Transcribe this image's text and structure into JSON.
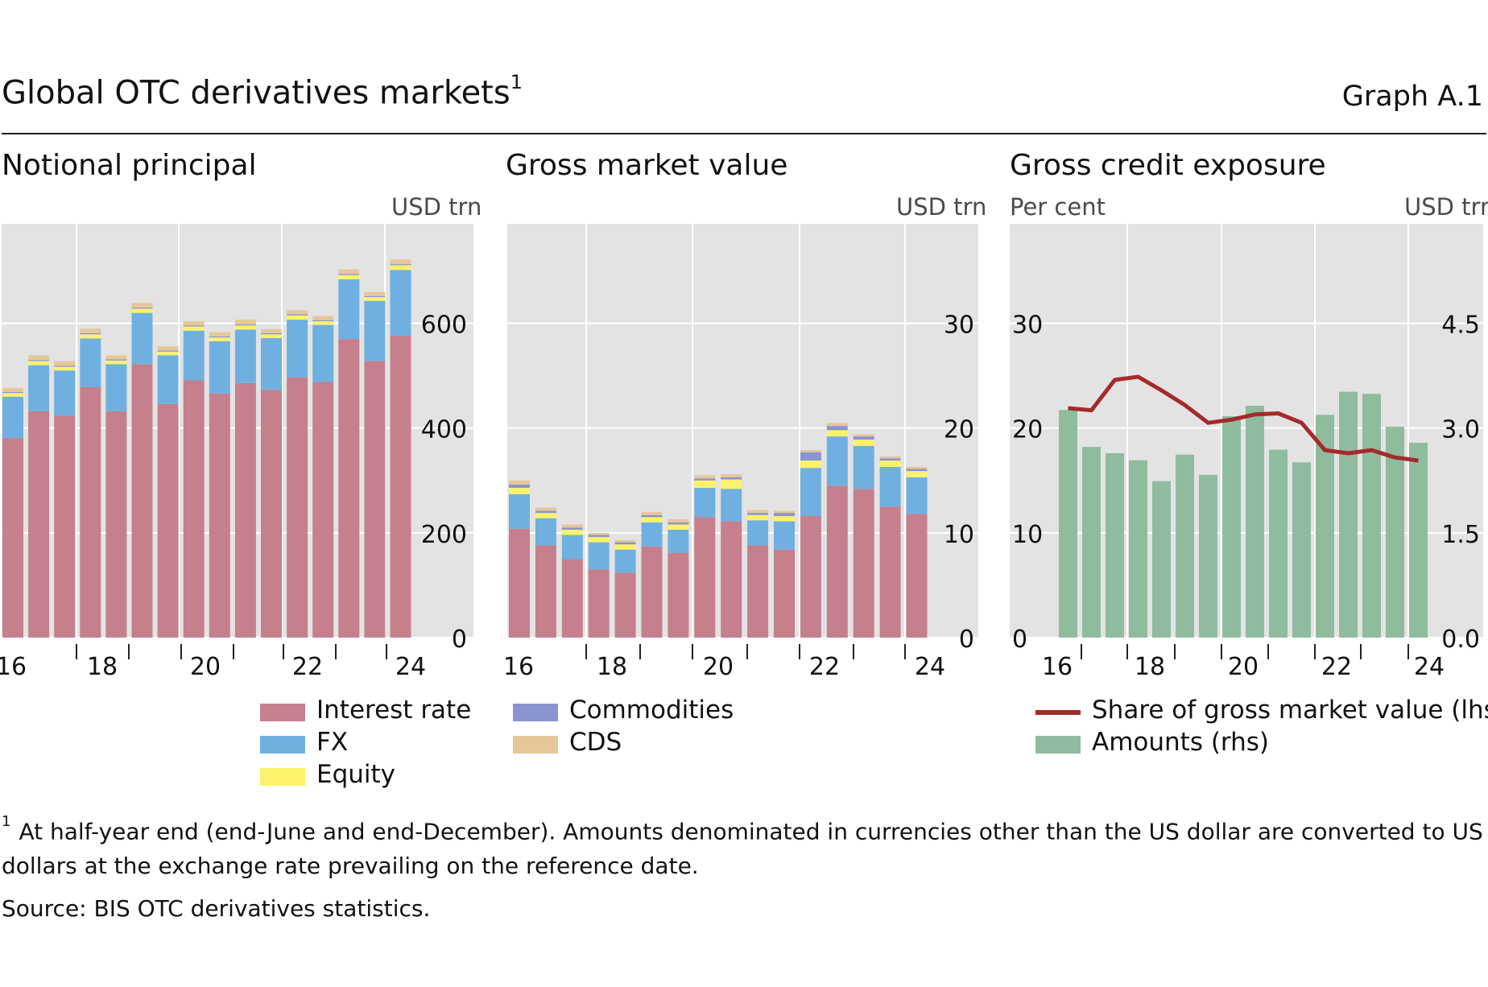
{
  "title": "Global OTC derivatives markets",
  "title_footnote_mark": "1",
  "graph_label": "Graph A.1",
  "legends": {
    "panel1": [
      {
        "label": "Interest rate",
        "color": "#c57f8d"
      },
      {
        "label": "FX",
        "color": "#6fb0e0"
      },
      {
        "label": "Equity",
        "color": "#fbf26a"
      }
    ],
    "panel2": [
      {
        "label": "Commodities",
        "color": "#8a94cf"
      },
      {
        "label": "CDS",
        "color": "#e5c79a"
      }
    ],
    "panel3": [
      {
        "label": "Share of gross market value (lhs)",
        "color": "#a52a2a",
        "kind": "line"
      },
      {
        "label": "Amounts (rhs)",
        "color": "#8fbc9e",
        "kind": "bar"
      }
    ]
  },
  "footnote": {
    "mark": "1",
    "text": "At half-year end (end-June and end-December). Amounts denominated in currencies other than the US dollar are converted to US dollars at the exchange rate prevailing on the reference date."
  },
  "source": "Source: BIS OTC derivatives statistics.",
  "chart_data": [
    {
      "id": "notional",
      "type": "bar",
      "stacked": true,
      "title": "Notional principal",
      "unit_right": "USD trn",
      "ylim": [
        0,
        790
      ],
      "yticks": [
        0,
        200,
        400,
        600
      ],
      "grid": true,
      "x_tick_labels": [
        "16",
        "18",
        "20",
        "22",
        "24"
      ],
      "periods": [
        "H1 2016",
        "H2 2016",
        "H1 2017",
        "H2 2017",
        "H1 2018",
        "H2 2018",
        "H1 2019",
        "H2 2019",
        "H1 2020",
        "H2 2020",
        "H1 2021",
        "H2 2021",
        "H1 2022",
        "H2 2022",
        "H1 2023",
        "H2 2023"
      ],
      "series": [
        {
          "name": "Interest rate",
          "color": "#c57f8d",
          "values": [
            381,
            432,
            424,
            478,
            432,
            522,
            446,
            491,
            466,
            486,
            473,
            497,
            488,
            570,
            528,
            577
          ]
        },
        {
          "name": "FX",
          "color": "#6fb0e0",
          "values": [
            79,
            88,
            86,
            93,
            90,
            98,
            93,
            95,
            100,
            102,
            99,
            110,
            109,
            114,
            115,
            125
          ]
        },
        {
          "name": "Equity",
          "color": "#fbf26a",
          "values": [
            7,
            8,
            7,
            8,
            7,
            8,
            7,
            8,
            7,
            8,
            7,
            8,
            7,
            8,
            7,
            9
          ]
        },
        {
          "name": "Commodities",
          "color": "#8a94cf",
          "values": [
            2,
            2,
            2,
            2,
            2,
            2,
            2,
            2,
            2,
            2,
            2,
            2,
            2,
            2,
            2,
            2
          ]
        },
        {
          "name": "CDS",
          "color": "#e5c79a",
          "values": [
            8,
            9,
            9,
            9,
            8,
            9,
            8,
            8,
            8,
            9,
            8,
            8,
            8,
            9,
            8,
            9
          ]
        }
      ]
    },
    {
      "id": "gross-market-value",
      "type": "bar",
      "stacked": true,
      "title": "Gross market value",
      "unit_right": "USD trn",
      "ylim": [
        0,
        39.5
      ],
      "yticks": [
        0,
        10,
        20,
        30
      ],
      "grid": true,
      "x_tick_labels": [
        "16",
        "18",
        "20",
        "22",
        "24"
      ],
      "periods": [
        "H1 2016",
        "H2 2016",
        "H1 2017",
        "H2 2017",
        "H1 2018",
        "H2 2018",
        "H1 2019",
        "H2 2019",
        "H1 2020",
        "H2 2020",
        "H1 2021",
        "H2 2021",
        "H1 2022",
        "H2 2022",
        "H1 2023",
        "H2 2023"
      ],
      "series": [
        {
          "name": "Interest rate",
          "color": "#c57f8d",
          "values": [
            10.4,
            8.8,
            7.5,
            6.5,
            6.2,
            8.7,
            8.1,
            11.5,
            11.1,
            8.8,
            8.4,
            11.6,
            14.5,
            14.2,
            12.5,
            11.8
          ]
        },
        {
          "name": "FX",
          "color": "#6fb0e0",
          "values": [
            3.3,
            2.6,
            2.3,
            2.6,
            2.2,
            2.3,
            2.2,
            2.8,
            3.1,
            2.4,
            2.7,
            4.6,
            4.7,
            4.1,
            3.8,
            3.5
          ]
        },
        {
          "name": "Equity",
          "color": "#fbf26a",
          "values": [
            0.6,
            0.5,
            0.5,
            0.5,
            0.5,
            0.5,
            0.5,
            0.7,
            0.9,
            0.5,
            0.5,
            0.7,
            0.6,
            0.6,
            0.6,
            0.6
          ]
        },
        {
          "name": "Commodities",
          "color": "#8a94cf",
          "values": [
            0.3,
            0.2,
            0.2,
            0.2,
            0.2,
            0.2,
            0.2,
            0.2,
            0.2,
            0.2,
            0.3,
            0.8,
            0.4,
            0.3,
            0.2,
            0.2
          ]
        },
        {
          "name": "CDS",
          "color": "#e5c79a",
          "values": [
            0.4,
            0.3,
            0.3,
            0.2,
            0.2,
            0.3,
            0.3,
            0.3,
            0.3,
            0.3,
            0.2,
            0.2,
            0.3,
            0.2,
            0.2,
            0.2
          ]
        }
      ]
    },
    {
      "id": "gross-credit-exposure",
      "type": "bar+line",
      "title": "Gross credit exposure",
      "unit_left": "Per cent",
      "unit_right": "USD trn",
      "grid": true,
      "x_tick_labels": [
        "16",
        "18",
        "20",
        "22",
        "24"
      ],
      "periods": [
        "H1 2016",
        "H2 2016",
        "H1 2017",
        "H2 2017",
        "H1 2018",
        "H2 2018",
        "H1 2019",
        "H2 2019",
        "H1 2020",
        "H2 2020",
        "H1 2021",
        "H2 2021",
        "H1 2022",
        "H2 2022",
        "H1 2023",
        "H2 2023"
      ],
      "left_axis": {
        "ylim": [
          0,
          39.5
        ],
        "yticks": [
          0,
          10,
          20,
          30
        ],
        "tick_labels": [
          "0",
          "10",
          "20",
          "30"
        ]
      },
      "right_axis": {
        "ylim": [
          0,
          5.925
        ],
        "yticks": [
          0,
          1.5,
          3.0,
          4.5
        ],
        "tick_labels": [
          "0.0",
          "1.5",
          "3.0",
          "4.5"
        ]
      },
      "bars": {
        "name": "Amounts (rhs)",
        "axis": "right",
        "color": "#8fbc9e",
        "values": [
          3.26,
          2.73,
          2.64,
          2.54,
          2.24,
          2.62,
          2.33,
          3.17,
          3.32,
          2.69,
          2.51,
          3.19,
          3.52,
          3.49,
          3.02,
          2.79
        ]
      },
      "line": {
        "name": "Share of gross market value (lhs)",
        "axis": "left",
        "color": "#a52a2a",
        "values": [
          21.9,
          21.7,
          24.6,
          24.9,
          23.6,
          22.2,
          20.5,
          20.8,
          21.3,
          21.4,
          20.5,
          17.9,
          17.6,
          17.9,
          17.2,
          16.9
        ]
      }
    }
  ]
}
